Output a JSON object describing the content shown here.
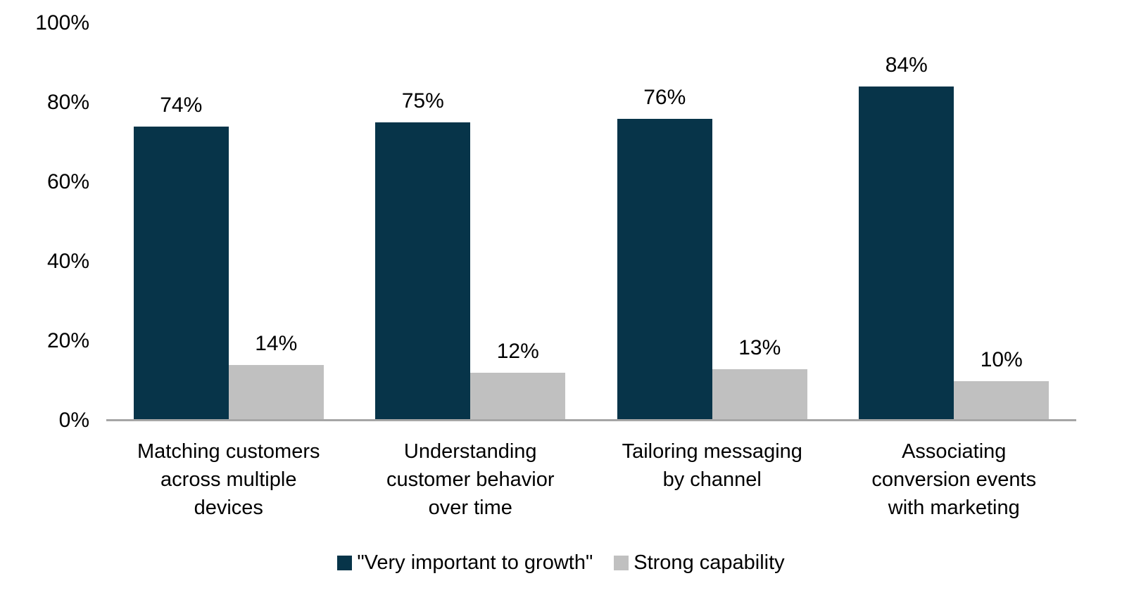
{
  "chart_data": {
    "type": "bar",
    "title": "",
    "xlabel": "",
    "ylabel": "",
    "categories": [
      "Matching customers across multiple devices",
      "Understanding customer behavior over time",
      "Tailoring messaging by channel",
      "Associating conversion events with marketing"
    ],
    "categories_wrapped": [
      "Matching customers\nacross multiple\ndevices",
      "Understanding\ncustomer behavior\nover time",
      "Tailoring messaging\nby channel",
      "Associating\nconversion events\nwith marketing"
    ],
    "series": [
      {
        "name": "\"Very important to growth\"",
        "color": "#073449",
        "values": [
          74,
          75,
          76,
          84
        ],
        "value_labels": [
          "74%",
          "75%",
          "76%",
          "84%"
        ]
      },
      {
        "name": "Strong capability",
        "color": "#c0c0c0",
        "values": [
          14,
          12,
          13,
          10
        ],
        "value_labels": [
          "14%",
          "12%",
          "13%",
          "10%"
        ]
      }
    ],
    "ylim": [
      0,
      100
    ],
    "yticks": [
      {
        "label": "100%",
        "value": 100
      },
      {
        "label": "80%",
        "value": 80
      },
      {
        "label": "60%",
        "value": 60
      },
      {
        "label": "40%",
        "value": 40
      },
      {
        "label": "20%",
        "value": 20
      },
      {
        "label": "0%",
        "value": 0
      }
    ],
    "grid": false,
    "legend_position": "bottom",
    "colors": {
      "axis_line": "#a6a6a6",
      "text": "#000000",
      "background": "#ffffff"
    }
  },
  "legend": {
    "items": [
      {
        "label": "\"Very important to growth\"",
        "swatch_color": "#073449"
      },
      {
        "label": "Strong capability",
        "swatch_color": "#c0c0c0"
      }
    ]
  }
}
